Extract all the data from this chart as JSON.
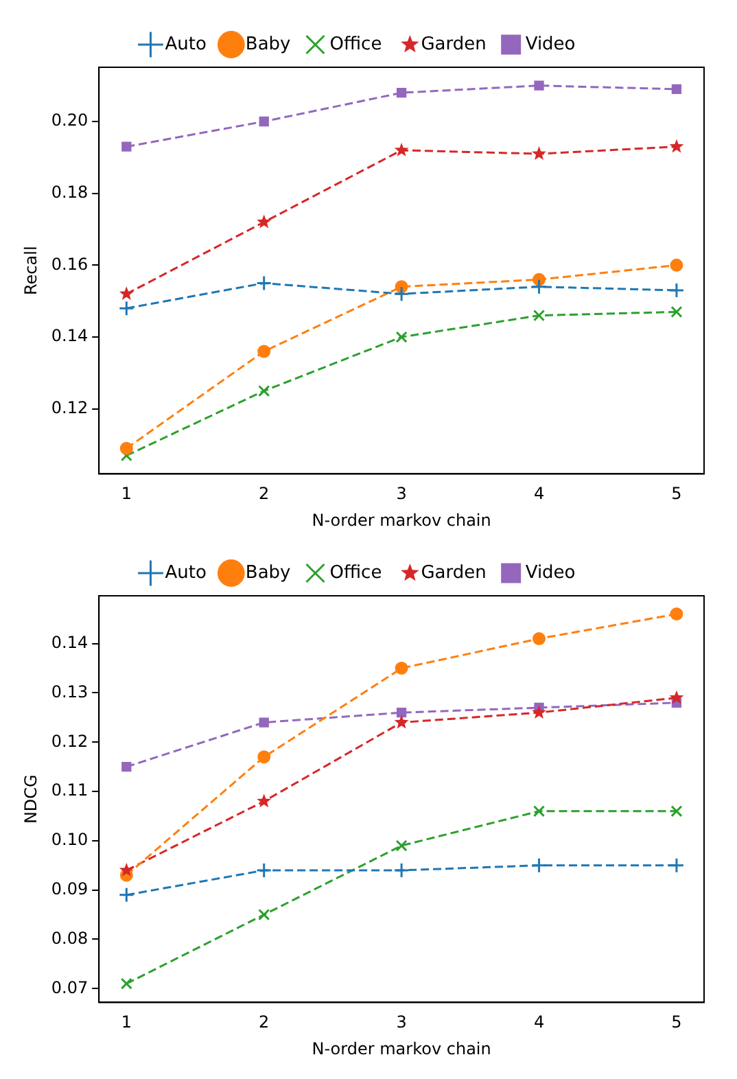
{
  "chart_data": [
    {
      "type": "line",
      "xlabel": "N-order markov chain",
      "ylabel": "Recall",
      "x": [
        1,
        2,
        3,
        4,
        5
      ],
      "xlim": [
        0.8,
        5.2
      ],
      "xticks": [
        1,
        2,
        3,
        4,
        5
      ],
      "ylim": [
        0.1019,
        0.2151
      ],
      "yticks": [
        0.12,
        0.14,
        0.16,
        0.18,
        {
          "value": 0.2,
          "label": "0.20"
        }
      ],
      "legend": "top",
      "line_style": "dashed",
      "grid": false,
      "series": [
        {
          "name": "Auto",
          "color": "#1f77b4",
          "marker": "plus",
          "values": [
            0.148,
            0.155,
            0.152,
            0.154,
            0.153
          ]
        },
        {
          "name": "Baby",
          "color": "#ff7f0e",
          "marker": "circle",
          "values": [
            0.109,
            0.136,
            0.154,
            0.156,
            0.16
          ]
        },
        {
          "name": "Office",
          "color": "#2ca02c",
          "marker": "cross",
          "values": [
            0.107,
            0.125,
            0.14,
            0.146,
            0.147
          ]
        },
        {
          "name": "Garden",
          "color": "#d62728",
          "marker": "star",
          "values": [
            0.152,
            0.172,
            0.192,
            0.191,
            0.193
          ]
        },
        {
          "name": "Video",
          "color": "#9467bd",
          "marker": "square",
          "values": [
            0.193,
            0.2,
            0.208,
            0.21,
            0.209
          ]
        }
      ]
    },
    {
      "type": "line",
      "xlabel": "N-order markov chain",
      "ylabel": "NDCG",
      "x": [
        1,
        2,
        3,
        4,
        5
      ],
      "xlim": [
        0.8,
        5.2
      ],
      "xticks": [
        1,
        2,
        3,
        4,
        5
      ],
      "ylim": [
        0.0672,
        0.1497
      ],
      "yticks": [
        0.07,
        0.08,
        0.09,
        {
          "value": 0.1,
          "label": "0.10"
        },
        0.11,
        0.12,
        0.13,
        0.14
      ],
      "legend": "top",
      "line_style": "dashed",
      "grid": false,
      "series": [
        {
          "name": "Auto",
          "color": "#1f77b4",
          "marker": "plus",
          "values": [
            0.089,
            0.094,
            0.094,
            0.095,
            0.095
          ]
        },
        {
          "name": "Baby",
          "color": "#ff7f0e",
          "marker": "circle",
          "values": [
            0.093,
            0.117,
            0.135,
            0.141,
            0.146
          ]
        },
        {
          "name": "Office",
          "color": "#2ca02c",
          "marker": "cross",
          "values": [
            0.071,
            0.085,
            0.099,
            0.106,
            0.106
          ]
        },
        {
          "name": "Garden",
          "color": "#d62728",
          "marker": "star",
          "values": [
            0.094,
            0.108,
            0.124,
            0.126,
            0.129
          ]
        },
        {
          "name": "Video",
          "color": "#9467bd",
          "marker": "square",
          "values": [
            0.115,
            0.124,
            0.126,
            0.127,
            0.128
          ]
        }
      ]
    }
  ]
}
